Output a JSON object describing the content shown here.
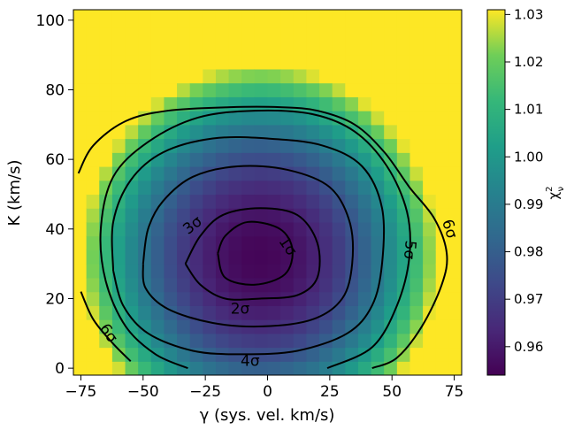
{
  "chart_data": {
    "type": "heatmap",
    "title": "",
    "xlabel": "γ (sys. vel. km/s)",
    "ylabel": "K (km/s)",
    "colorbar_label": "χ²ν",
    "colormap": "viridis",
    "xlim": [
      -78,
      78
    ],
    "ylim": [
      -2,
      103
    ],
    "x_ticks": [
      -75,
      -50,
      -25,
      0,
      25,
      50,
      75
    ],
    "x_tick_labels": [
      "−75",
      "−50",
      "−25",
      "0",
      "25",
      "50",
      "75"
    ],
    "y_ticks": [
      0,
      20,
      40,
      60,
      80,
      100
    ],
    "y_tick_labels": [
      "0",
      "20",
      "40",
      "60",
      "80",
      "100"
    ],
    "color_range": [
      0.954,
      1.031
    ],
    "colorbar_ticks": [
      0.96,
      0.97,
      0.98,
      0.99,
      1.0,
      1.01,
      1.02,
      1.03
    ],
    "colorbar_tick_labels": [
      "0.96",
      "0.97",
      "0.98",
      "0.99",
      "1.00",
      "1.01",
      "1.02",
      "1.03"
    ],
    "grid": false,
    "minimum": {
      "x": -3,
      "y": 32,
      "value": 0.955
    },
    "heatmap_model": {
      "description": "chi2 ≈ vmin + a*((x-x0)/sx)^2 + b*((y-y0)/sy)^2, clipped at vmax",
      "x0": -3,
      "y0": 32,
      "sx": 48,
      "sy": 37,
      "floor": 0.955,
      "scale": 0.034
    },
    "contours": [
      {
        "label": "1σ",
        "points": [
          [
            -20,
            33
          ],
          [
            -17,
            38
          ],
          [
            -8,
            42
          ],
          [
            5,
            40
          ],
          [
            10,
            34
          ],
          [
            7,
            27
          ],
          [
            -5,
            24
          ],
          [
            -17,
            26
          ],
          [
            -20,
            33
          ]
        ]
      },
      {
        "label": "2σ",
        "points": [
          [
            -33,
            30
          ],
          [
            -27,
            38
          ],
          [
            -18,
            44
          ],
          [
            -3,
            46
          ],
          [
            12,
            44
          ],
          [
            20,
            36
          ],
          [
            20,
            26
          ],
          [
            12,
            21
          ],
          [
            -3,
            20
          ],
          [
            -17,
            20
          ],
          [
            -27,
            24
          ],
          [
            -33,
            30
          ]
        ]
      },
      {
        "label": "3σ",
        "points": [
          [
            -50,
            30
          ],
          [
            -48,
            40
          ],
          [
            -42,
            48
          ],
          [
            -30,
            55
          ],
          [
            -12,
            58
          ],
          [
            8,
            57
          ],
          [
            25,
            52
          ],
          [
            33,
            42
          ],
          [
            34,
            30
          ],
          [
            30,
            20
          ],
          [
            18,
            14
          ],
          [
            -2,
            12
          ],
          [
            -22,
            13
          ],
          [
            -40,
            17
          ],
          [
            -49,
            23
          ],
          [
            -50,
            30
          ]
        ]
      },
      {
        "label": "4σ",
        "points": [
          [
            -62,
            28
          ],
          [
            -62,
            42
          ],
          [
            -55,
            54
          ],
          [
            -42,
            62
          ],
          [
            -22,
            66
          ],
          [
            0,
            66
          ],
          [
            22,
            64
          ],
          [
            38,
            58
          ],
          [
            46,
            46
          ],
          [
            46,
            30
          ],
          [
            42,
            18
          ],
          [
            32,
            10
          ],
          [
            12,
            5
          ],
          [
            -10,
            4
          ],
          [
            -30,
            5
          ],
          [
            -48,
            10
          ],
          [
            -58,
            18
          ],
          [
            -62,
            28
          ]
        ]
      },
      {
        "label": "5σ",
        "points": [
          [
            -32,
            0
          ],
          [
            -45,
            4
          ],
          [
            -57,
            12
          ],
          [
            -65,
            25
          ],
          [
            -67,
            40
          ],
          [
            -62,
            55
          ],
          [
            -48,
            65
          ],
          [
            -28,
            72
          ],
          [
            -5,
            74
          ],
          [
            18,
            73
          ],
          [
            35,
            68
          ],
          [
            48,
            58
          ],
          [
            56,
            45
          ],
          [
            57,
            32
          ],
          [
            52,
            18
          ],
          [
            42,
            6
          ],
          [
            24,
            0
          ]
        ]
      },
      {
        "label": "6σ",
        "points": [
          [
            -76,
            56
          ],
          [
            -70,
            64
          ],
          [
            -57,
            71
          ],
          [
            -40,
            74
          ],
          [
            -15,
            75
          ],
          [
            5,
            75
          ],
          [
            20,
            74
          ],
          [
            35,
            70
          ],
          [
            47,
            62
          ],
          [
            57,
            52
          ],
          [
            67,
            43
          ],
          [
            72,
            33
          ],
          [
            70,
            24
          ],
          [
            62,
            12
          ],
          [
            52,
            3
          ],
          [
            42,
            0
          ]
        ]
      },
      {
        "label": "6σ",
        "points": [
          [
            -75,
            22
          ],
          [
            -70,
            14
          ],
          [
            -62,
            7
          ],
          [
            -55,
            2
          ]
        ]
      }
    ],
    "contour_labels": [
      {
        "text": "1σ",
        "x": 8,
        "y": 35,
        "angle": 55
      },
      {
        "text": "2σ",
        "x": -11,
        "y": 17,
        "angle": 0
      },
      {
        "text": "3σ",
        "x": -30,
        "y": 41,
        "angle": -38
      },
      {
        "text": "4σ",
        "x": -7,
        "y": 2,
        "angle": 0
      },
      {
        "text": "5σ",
        "x": 57,
        "y": 34,
        "angle": 95
      },
      {
        "text": "6σ",
        "x": 73,
        "y": 40,
        "angle": 72
      },
      {
        "text": "6σ",
        "x": -64,
        "y": 10,
        "angle": 55
      }
    ]
  }
}
